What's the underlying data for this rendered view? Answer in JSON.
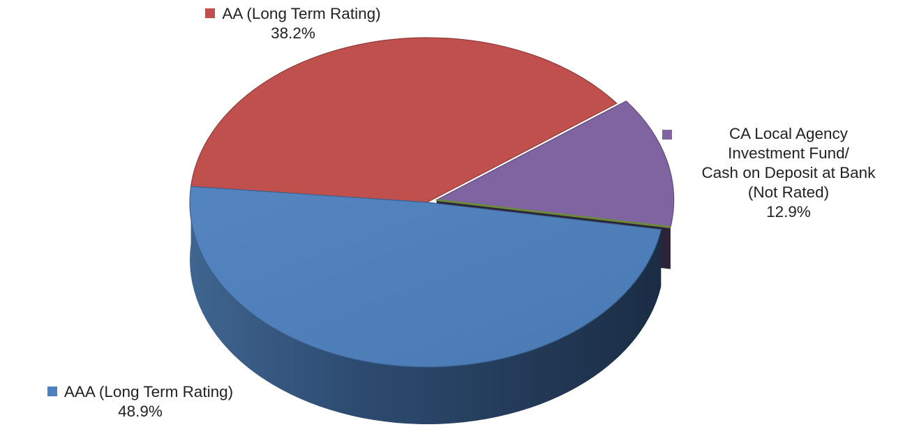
{
  "chart_data": {
    "type": "pie",
    "title": "",
    "slices": [
      {
        "name": "AAA  (Long Term Rating)",
        "value": 48.9,
        "value_label": "48.9%",
        "color": "#4F81BD",
        "label_lines": [
          "AAA  (Long Term Rating)"
        ]
      },
      {
        "name": "AA (Long Term Rating)",
        "value": 38.2,
        "value_label": "38.2%",
        "color": "#C0504D",
        "label_lines": [
          "AA (Long Term Rating)"
        ]
      },
      {
        "name": "CA Local Agency Investment Fund/ Cash on Deposit at Bank (Not Rated)",
        "value": 12.9,
        "value_label": "12.9%",
        "color": "#8064A2",
        "label_lines": [
          "CA Local Agency",
          "Investment Fund/",
          "Cash on Deposit at Bank",
          "(Not Rated)"
        ]
      }
    ],
    "style": "3d-exploded",
    "legend": "none"
  }
}
